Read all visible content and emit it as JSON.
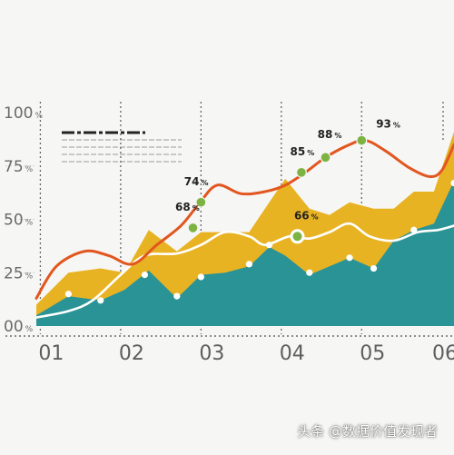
{
  "chart_data": {
    "type": "area",
    "categories": [
      "01",
      "02",
      "03",
      "04",
      "05",
      "06"
    ],
    "ylim": [
      0,
      100
    ],
    "yticks": [
      {
        "value": 0,
        "label": "00"
      },
      {
        "value": 25,
        "label": "25"
      },
      {
        "value": 50,
        "label": "50"
      },
      {
        "value": 75,
        "label": "75"
      },
      {
        "value": 100,
        "label": "100"
      }
    ],
    "ytick_suffix": "%",
    "xticks": [
      {
        "x": 1,
        "label": "01"
      },
      {
        "x": 2,
        "label": "02"
      },
      {
        "x": 3,
        "label": "03"
      },
      {
        "x": 4,
        "label": "04"
      },
      {
        "x": 5,
        "label": "05"
      },
      {
        "x": 6,
        "label": "06"
      }
    ],
    "xrange": [
      0.95,
      6.15
    ],
    "gridlines_x": [
      1,
      2,
      3,
      4,
      5
    ],
    "series": [
      {
        "kind": "area",
        "color": "#e8b323",
        "points": [
          [
            0.95,
            10
          ],
          [
            1.35,
            25
          ],
          [
            1.75,
            27
          ],
          [
            2.05,
            25
          ],
          [
            2.35,
            45
          ],
          [
            2.7,
            35
          ],
          [
            3.0,
            44
          ],
          [
            3.3,
            44
          ],
          [
            3.6,
            44
          ],
          [
            3.85,
            58
          ],
          [
            4.05,
            69
          ],
          [
            4.35,
            55
          ],
          [
            4.6,
            52
          ],
          [
            4.85,
            58
          ],
          [
            5.15,
            55
          ],
          [
            5.4,
            55
          ],
          [
            5.65,
            63
          ],
          [
            5.9,
            63
          ],
          [
            6.15,
            91
          ]
        ]
      },
      {
        "kind": "area",
        "color": "#2a9396",
        "points": [
          [
            0.95,
            5
          ],
          [
            1.35,
            14
          ],
          [
            1.75,
            12
          ],
          [
            2.05,
            17
          ],
          [
            2.35,
            26
          ],
          [
            2.7,
            13
          ],
          [
            3.0,
            24
          ],
          [
            3.3,
            25
          ],
          [
            3.6,
            28
          ],
          [
            3.85,
            37
          ],
          [
            4.05,
            33
          ],
          [
            4.35,
            24
          ],
          [
            4.6,
            28
          ],
          [
            4.85,
            32
          ],
          [
            5.15,
            27
          ],
          [
            5.4,
            40
          ],
          [
            5.65,
            45
          ],
          [
            5.9,
            48
          ],
          [
            6.15,
            68
          ]
        ]
      },
      {
        "kind": "line",
        "color": "#ffffff",
        "points": [
          [
            0.95,
            4
          ],
          [
            1.35,
            7
          ],
          [
            1.65,
            12
          ],
          [
            2.0,
            24
          ],
          [
            2.3,
            33
          ],
          [
            2.7,
            34
          ],
          [
            3.0,
            38
          ],
          [
            3.3,
            44
          ],
          [
            3.6,
            42
          ],
          [
            3.8,
            38
          ],
          [
            4.1,
            42
          ],
          [
            4.35,
            41
          ],
          [
            4.6,
            44
          ],
          [
            4.85,
            48
          ],
          [
            5.1,
            42
          ],
          [
            5.4,
            40
          ],
          [
            5.7,
            44
          ],
          [
            5.95,
            45
          ],
          [
            6.15,
            47
          ]
        ]
      },
      {
        "kind": "line",
        "color": "#e2561f",
        "points": [
          [
            0.95,
            13
          ],
          [
            1.2,
            28
          ],
          [
            1.55,
            35
          ],
          [
            1.85,
            33
          ],
          [
            2.15,
            29
          ],
          [
            2.45,
            38
          ],
          [
            2.75,
            47
          ],
          [
            2.97,
            57
          ],
          [
            3.2,
            66
          ],
          [
            3.5,
            62
          ],
          [
            3.8,
            63
          ],
          [
            4.05,
            66
          ],
          [
            4.3,
            72
          ],
          [
            4.55,
            79
          ],
          [
            4.85,
            85
          ],
          [
            5.05,
            87
          ],
          [
            5.3,
            82
          ],
          [
            5.6,
            74
          ],
          [
            5.85,
            70
          ],
          [
            6.0,
            73
          ],
          [
            6.15,
            85
          ]
        ]
      }
    ],
    "annotations": [
      {
        "x": 2.9,
        "y": 46,
        "label": "68",
        "suffix": "%",
        "lx": 2.68,
        "ly": 54
      },
      {
        "x": 3.0,
        "y": 58,
        "label": "74",
        "suffix": "%",
        "lx": 2.79,
        "ly": 66
      },
      {
        "x": 4.25,
        "y": 72,
        "label": "85",
        "suffix": "%",
        "lx": 4.11,
        "ly": 80
      },
      {
        "x": 4.55,
        "y": 79,
        "label": "88",
        "suffix": "%",
        "lx": 4.45,
        "ly": 88
      },
      {
        "x": 5.0,
        "y": 87,
        "label": "93",
        "suffix": "%",
        "lx": 5.18,
        "ly": 93
      },
      {
        "x": 4.2,
        "y": 42,
        "label": "66",
        "suffix": "%",
        "lx": 4.16,
        "ly": 50,
        "hollow": true
      }
    ],
    "white_markers": [
      [
        1.35,
        15
      ],
      [
        1.75,
        12
      ],
      [
        2.3,
        24
      ],
      [
        2.7,
        14
      ],
      [
        3.0,
        23
      ],
      [
        3.6,
        29
      ],
      [
        3.85,
        38
      ],
      [
        4.35,
        25
      ],
      [
        4.85,
        32
      ],
      [
        5.15,
        27
      ],
      [
        5.65,
        45
      ],
      [
        6.15,
        67
      ]
    ]
  },
  "watermark": "头条 @数据价值发现者"
}
